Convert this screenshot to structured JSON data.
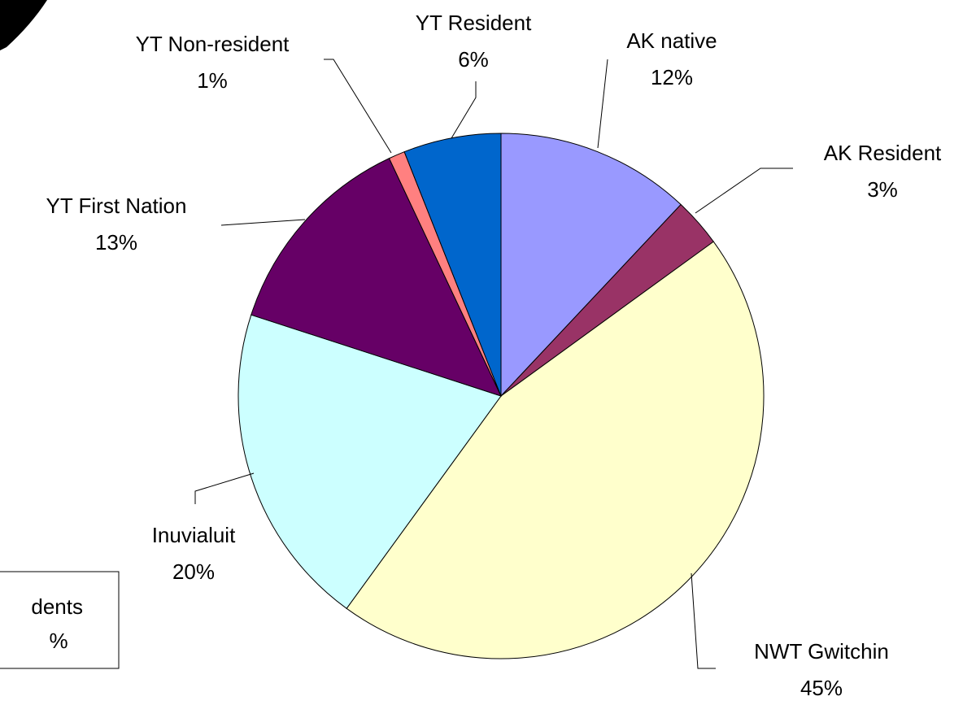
{
  "chart_data": {
    "type": "pie",
    "categories": [
      "AK native",
      "AK Resident",
      "NWT Gwitchin",
      "Inuvialuit",
      "YT First Nation",
      "YT Non-resident",
      "YT Resident"
    ],
    "values": [
      12,
      3,
      45,
      20,
      13,
      1,
      6
    ],
    "value_labels": [
      "12%",
      "3%",
      "45%",
      "20%",
      "13%",
      "1%",
      "6%"
    ],
    "colors": [
      "#9999ff",
      "#993366",
      "#ffffcc",
      "#ccffff",
      "#660066",
      "#ff8080",
      "#0066cc"
    ],
    "annotations": [
      "dents",
      "%"
    ]
  }
}
